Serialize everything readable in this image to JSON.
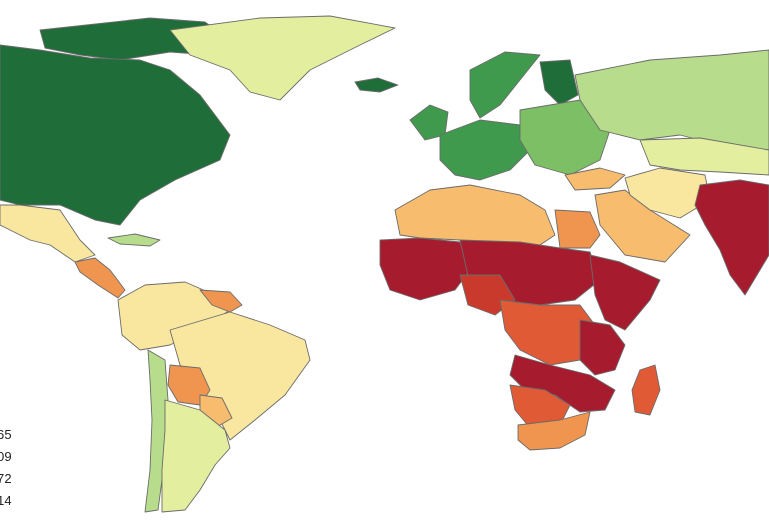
{
  "map": {
    "colors": {
      "dark_green": "#1f6e3a",
      "green": "#3f9a4e",
      "mid_green": "#7cbf64",
      "light_green": "#b7dc8c",
      "pale_yellow_green": "#e3ef9f",
      "light_yellow": "#f9e7a0",
      "orange_light": "#f7bc6e",
      "orange": "#f09550",
      "red_orange": "#e05a35",
      "red": "#c93a2c",
      "dark_red": "#a61c2e",
      "ocean": "#ffffff",
      "border": "#6b6b6b"
    },
    "regions": [
      {
        "name": "canada-arctic-islands",
        "color": "dark_green"
      },
      {
        "name": "canada-usa",
        "color": "dark_green"
      },
      {
        "name": "greenland",
        "color": "pale_yellow_green"
      },
      {
        "name": "iceland",
        "color": "dark_green"
      },
      {
        "name": "mexico",
        "color": "light_yellow"
      },
      {
        "name": "central-america",
        "color": "orange"
      },
      {
        "name": "cuba",
        "color": "light_green"
      },
      {
        "name": "south-america-north",
        "color": "light_yellow"
      },
      {
        "name": "guyanas",
        "color": "orange"
      },
      {
        "name": "brazil",
        "color": "light_yellow"
      },
      {
        "name": "bolivia",
        "color": "orange"
      },
      {
        "name": "paraguay",
        "color": "orange_light"
      },
      {
        "name": "chile",
        "color": "light_green"
      },
      {
        "name": "argentina",
        "color": "pale_yellow_green"
      },
      {
        "name": "scandinavia",
        "color": "green"
      },
      {
        "name": "finland",
        "color": "dark_green"
      },
      {
        "name": "uk-ireland",
        "color": "green"
      },
      {
        "name": "europe-west",
        "color": "green"
      },
      {
        "name": "europe-east",
        "color": "mid_green"
      },
      {
        "name": "russia",
        "color": "light_green"
      },
      {
        "name": "central-asia",
        "color": "pale_yellow_green"
      },
      {
        "name": "turkey",
        "color": "orange_light"
      },
      {
        "name": "middle-east",
        "color": "orange_light"
      },
      {
        "name": "iran-afghanistan",
        "color": "light_yellow"
      },
      {
        "name": "south-asia",
        "color": "dark_red"
      },
      {
        "name": "north-africa",
        "color": "orange_light"
      },
      {
        "name": "egypt",
        "color": "orange"
      },
      {
        "name": "west-africa",
        "color": "dark_red"
      },
      {
        "name": "sahel-central",
        "color": "dark_red"
      },
      {
        "name": "nigeria",
        "color": "red"
      },
      {
        "name": "horn-of-africa",
        "color": "dark_red"
      },
      {
        "name": "central-africa",
        "color": "red_orange"
      },
      {
        "name": "east-africa",
        "color": "dark_red"
      },
      {
        "name": "southern-africa",
        "color": "dark_red"
      },
      {
        "name": "namibia-botswana",
        "color": "red_orange"
      },
      {
        "name": "south-africa",
        "color": "orange"
      },
      {
        "name": "madagascar",
        "color": "red_orange"
      }
    ],
    "legend": {
      "items": [
        {
          "label": "65"
        },
        {
          "label": "09"
        },
        {
          "label": "72"
        },
        {
          "label": "14"
        }
      ]
    }
  }
}
